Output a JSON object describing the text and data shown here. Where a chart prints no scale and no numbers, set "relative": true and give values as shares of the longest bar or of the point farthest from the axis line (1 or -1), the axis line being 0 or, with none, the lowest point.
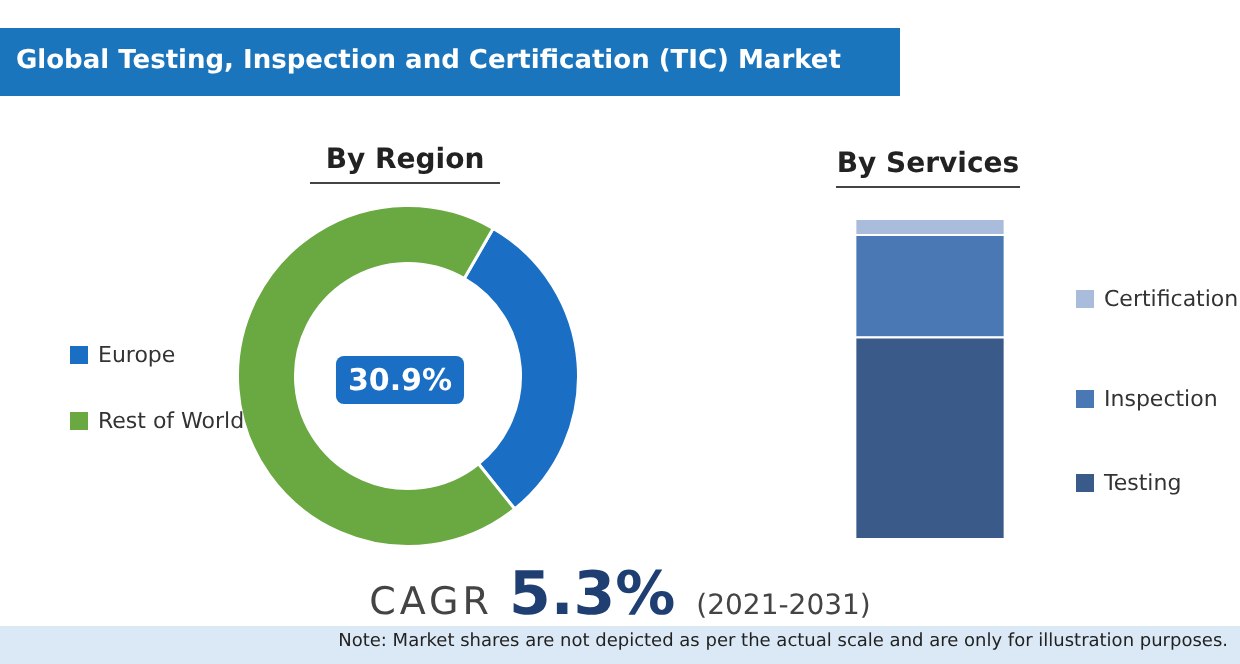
{
  "chart_data": [
    {
      "type": "donut",
      "title": "Global Testing, Inspection and Certification (TIC) Market",
      "subtitle": "By Region",
      "categories": [
        "Europe",
        "Rest of World"
      ],
      "values": [
        30.9,
        69.1
      ],
      "colors": [
        "#1a6fc4",
        "#6aa842"
      ],
      "value_labels": [
        "30.9%",
        null
      ],
      "legend": "left",
      "annotations": [
        "CAGR 5.3% (2021-2031)",
        "Note: Market shares are not depicted as per the actual scale and are only for illustration purposes."
      ]
    },
    {
      "type": "bar",
      "title": "By Services",
      "stacked": true,
      "relative": true,
      "categories": [
        null
      ],
      "legend": "right",
      "series": [
        {
          "name": "Testing",
          "color": "#3a5a8a",
          "values": [
            0.63
          ]
        },
        {
          "name": "Inspection",
          "color": "#4a78b5",
          "values": [
            0.32
          ]
        },
        {
          "name": "Certification",
          "color": "#a9bcdc",
          "values": [
            0.05
          ]
        }
      ]
    }
  ]
}
